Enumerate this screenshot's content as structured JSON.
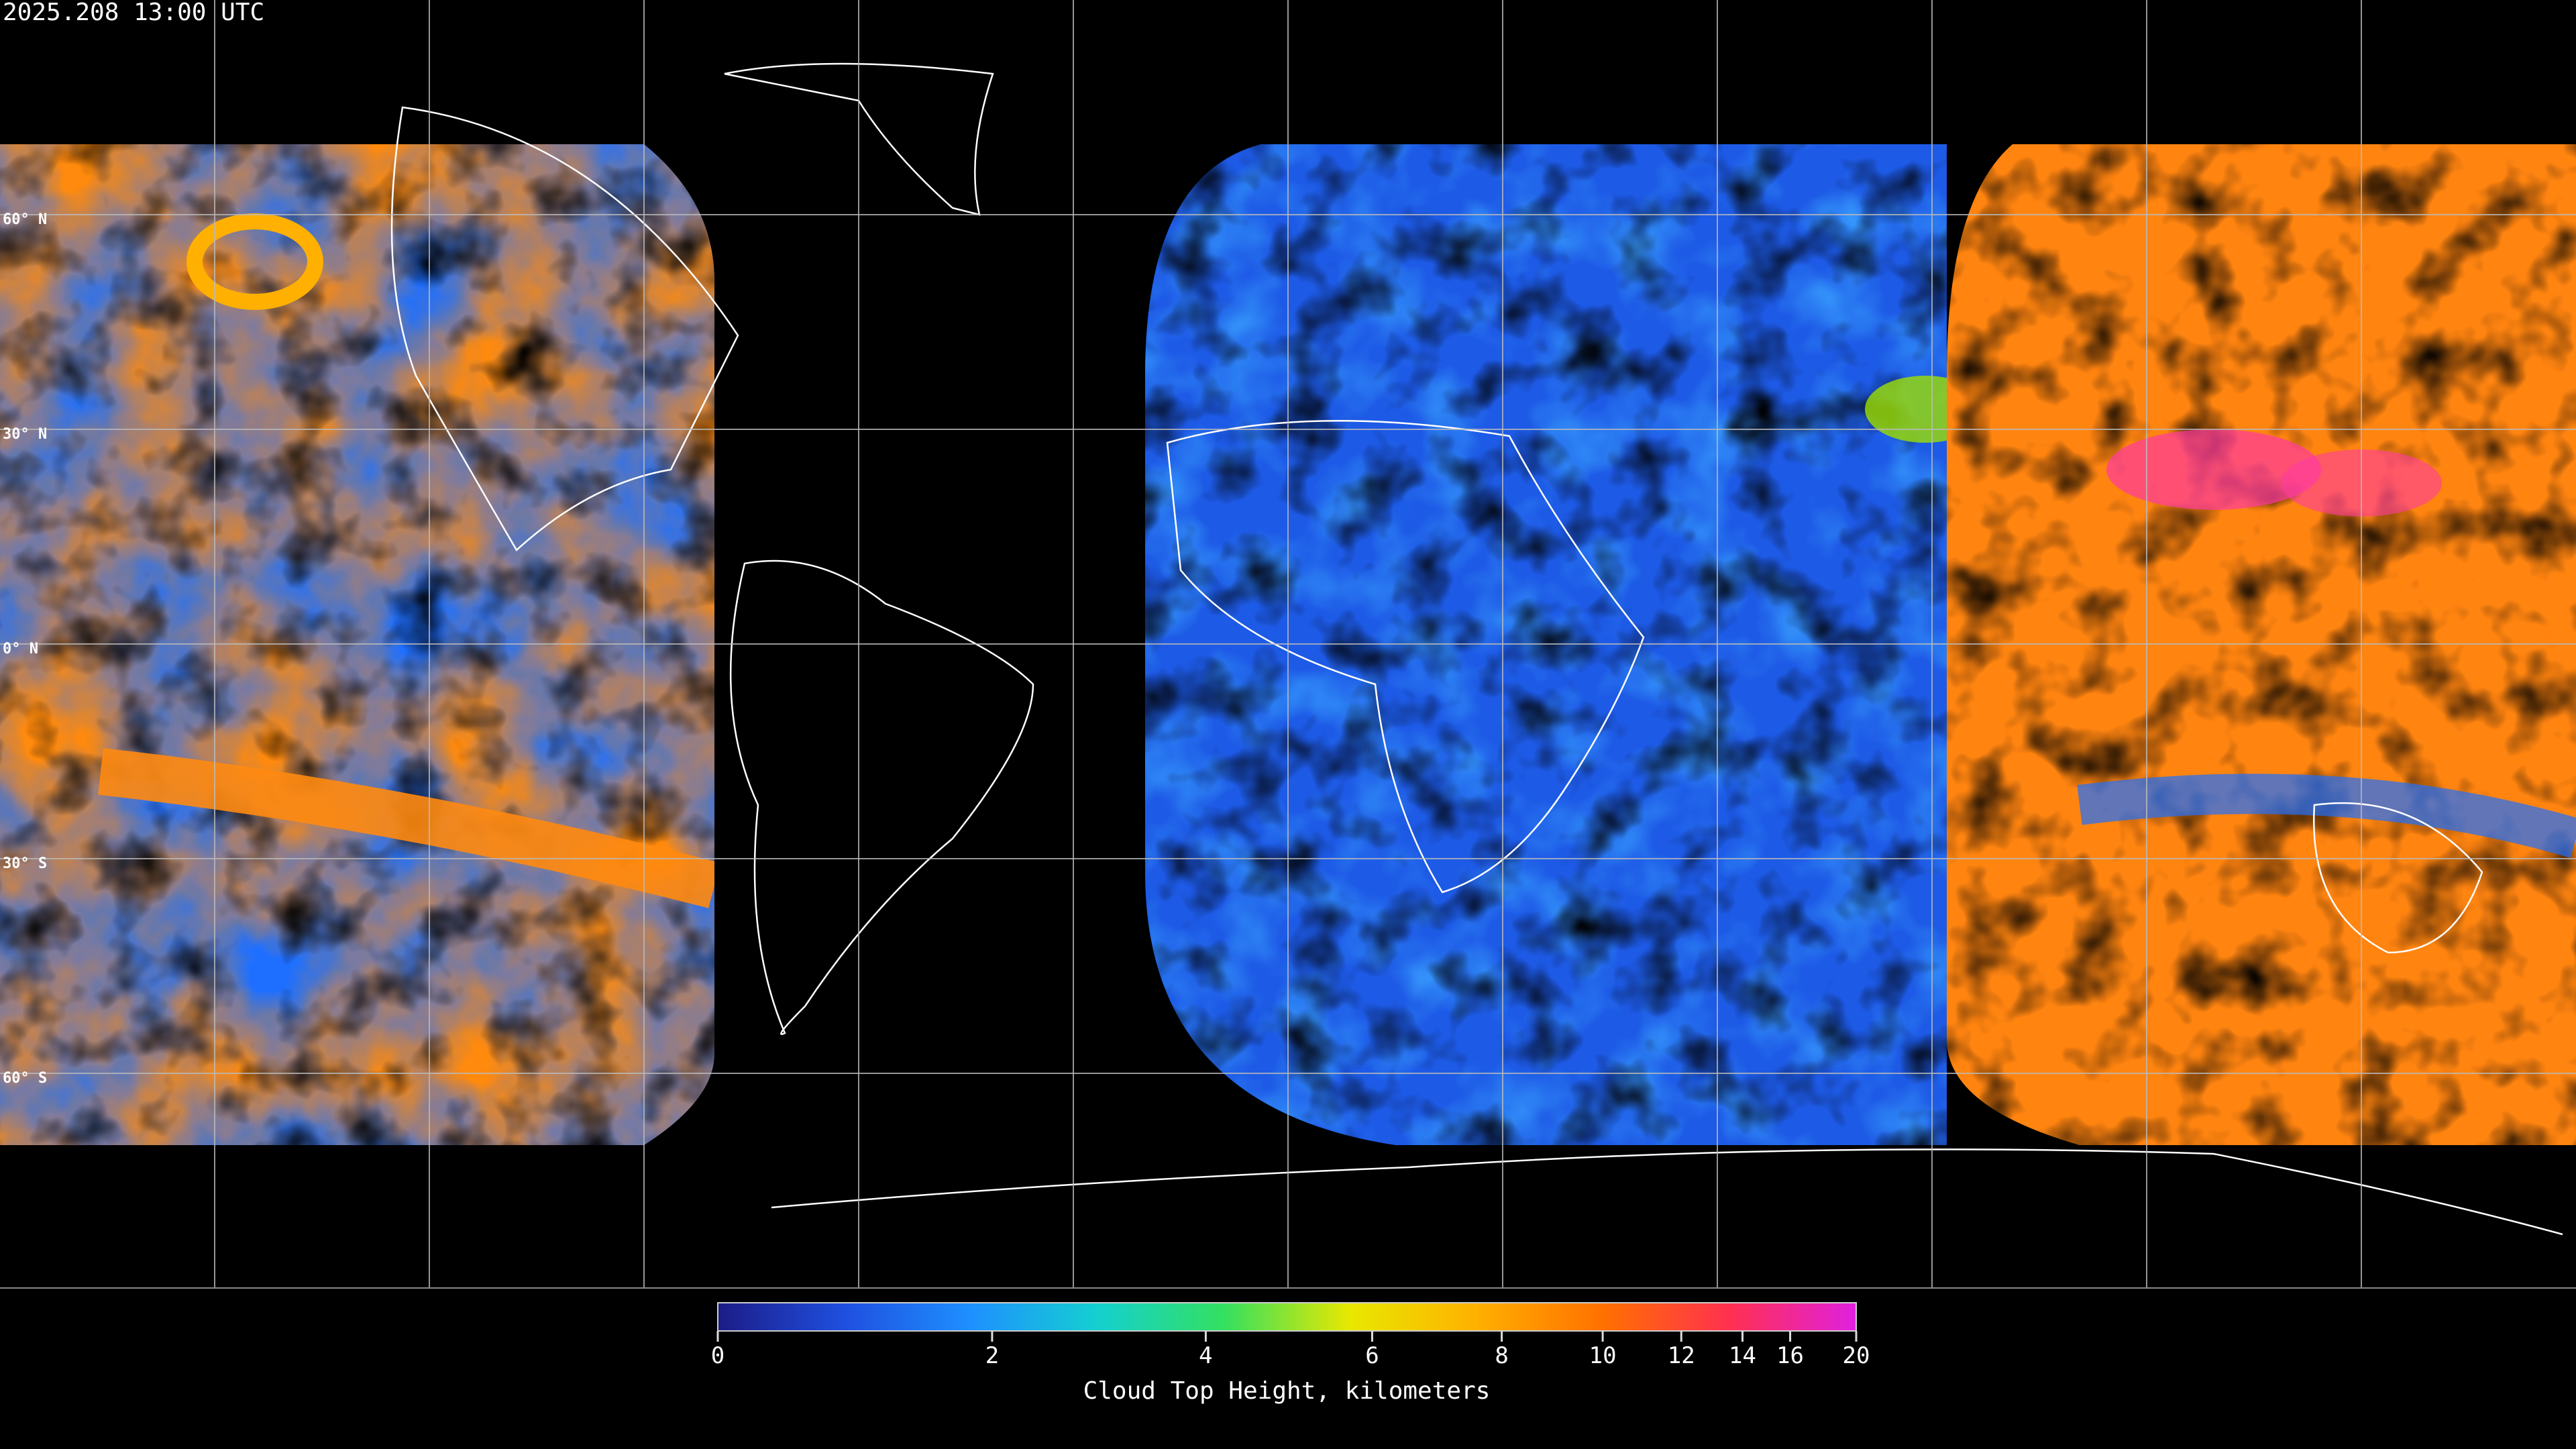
{
  "title": "2025.208 13:00 UTC",
  "lat_labels": [
    "60° N",
    "30° N",
    "0° N",
    "30° S",
    "60° S"
  ],
  "colorbar": {
    "label": "Cloud Top Height, kilometers",
    "lim": [
      0,
      20
    ],
    "ticks": [
      0,
      2,
      4,
      6,
      8,
      10,
      12,
      14,
      16,
      20
    ],
    "colors": [
      "#1c1c86",
      "#1f4fe0",
      "#1e90ff",
      "#14d0d0",
      "#33e060",
      "#e8e800",
      "#ffb000",
      "#ff7000",
      "#ff3050",
      "#e020e0"
    ]
  }
}
